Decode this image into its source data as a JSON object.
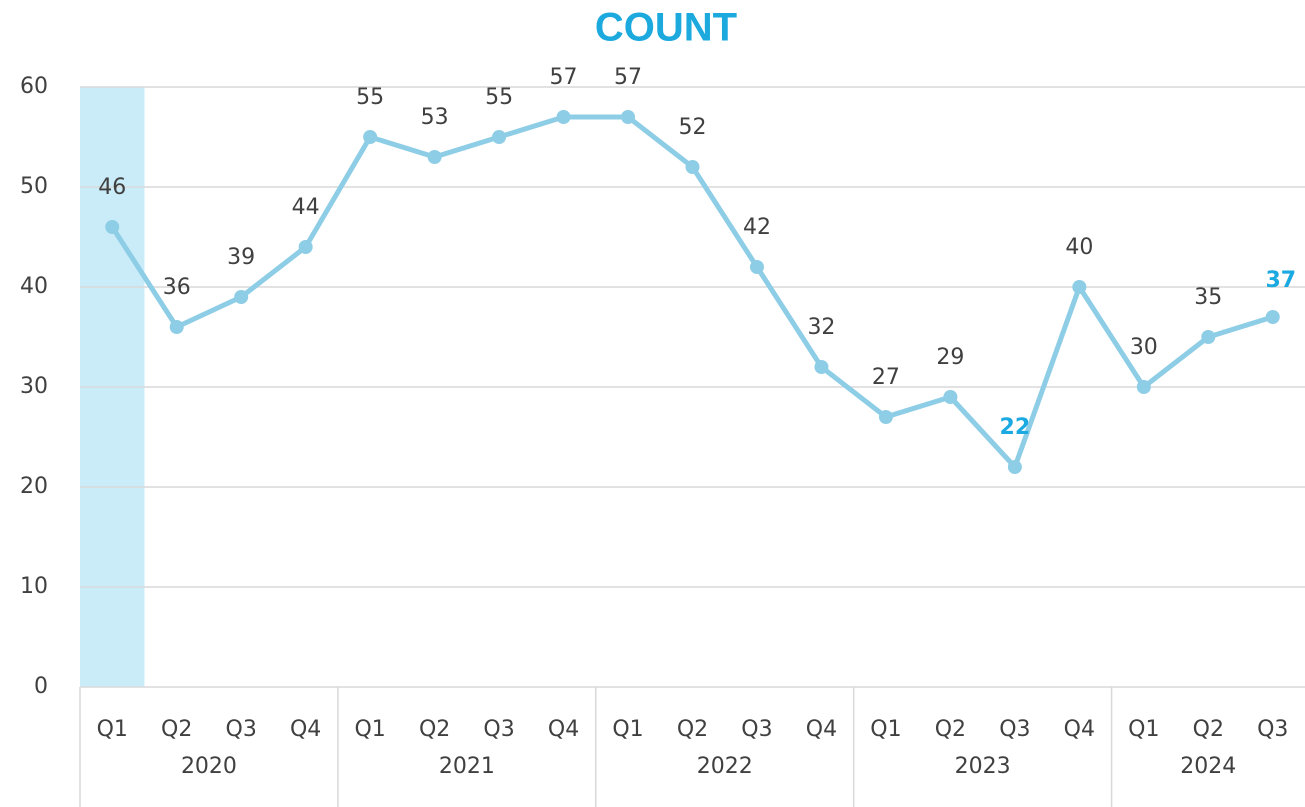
{
  "chart_data": {
    "type": "line",
    "title": "COUNT",
    "categories": [
      "Q1",
      "Q2",
      "Q3",
      "Q4",
      "Q1",
      "Q2",
      "Q3",
      "Q4",
      "Q1",
      "Q2",
      "Q3",
      "Q4",
      "Q1",
      "Q2",
      "Q3",
      "Q4",
      "Q1",
      "Q2",
      "Q3"
    ],
    "category_groups": [
      "2020",
      "2020",
      "2020",
      "2020",
      "2021",
      "2021",
      "2021",
      "2021",
      "2022",
      "2022",
      "2022",
      "2022",
      "2023",
      "2023",
      "2023",
      "2023",
      "2024",
      "2024",
      "2024"
    ],
    "values": [
      46,
      36,
      39,
      44,
      55,
      53,
      55,
      57,
      57,
      52,
      42,
      32,
      27,
      29,
      22,
      40,
      30,
      35,
      37
    ],
    "color": "#8ecde6",
    "ylim": [
      0,
      60
    ],
    "yticks": [
      0,
      10,
      20,
      30,
      40,
      50,
      60
    ],
    "grid": true,
    "highlight_band": 0,
    "highlight_band_color": "#c9ecf8",
    "highlight_points": [
      14,
      18
    ],
    "highlight_color": "#1aa9e0"
  }
}
